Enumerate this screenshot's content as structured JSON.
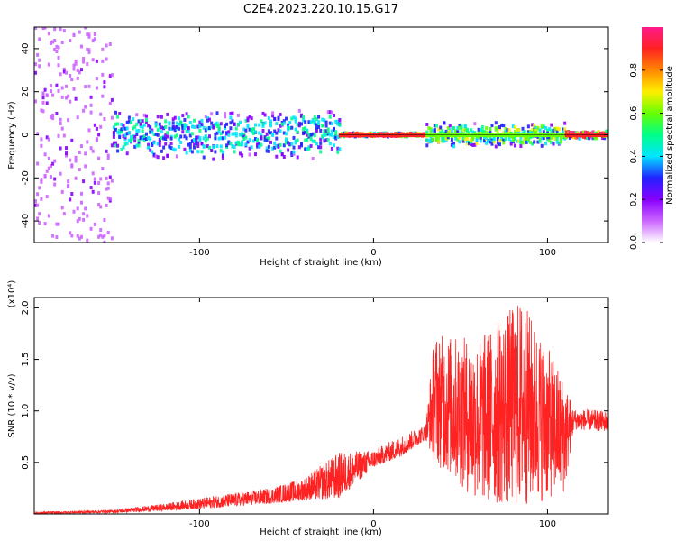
{
  "figure_title": "C2E4.2023.220.10.15.G17",
  "chart_data": [
    {
      "type": "heatmap",
      "xlabel": "Height of straight line (km)",
      "ylabel": "Frequency (Hz)",
      "xlim": [
        -195,
        135
      ],
      "ylim": [
        -50,
        50
      ],
      "xticks": [
        -100,
        0,
        100
      ],
      "yticks": [
        -40,
        -20,
        0,
        20,
        40
      ],
      "colorbar": {
        "label": "Normalized spectral amplitude",
        "range": [
          0.0,
          1.0
        ],
        "ticks": [
          0.0,
          0.2,
          0.4,
          0.6,
          0.8
        ],
        "colors": [
          "#ffffff",
          "#cc66ff",
          "#8800ff",
          "#2222ff",
          "#00e5ff",
          "#00ff88",
          "#66ff00",
          "#ffee00",
          "#ff8800",
          "#ff2222",
          "#ff1a8c"
        ]
      },
      "regions": [
        {
          "x": [
            -195,
            -150
          ],
          "freq_spread": 50,
          "amplitude": 0.15,
          "description_level": "scattered noise"
        },
        {
          "x": [
            -150,
            -20
          ],
          "freq_spread": 12,
          "amplitude": 0.4
        },
        {
          "x": [
            -20,
            30
          ],
          "freq_spread": 1,
          "amplitude": 0.9
        },
        {
          "x": [
            30,
            110
          ],
          "freq_spread": 6,
          "amplitude": 0.55
        },
        {
          "x": [
            110,
            135
          ],
          "freq_spread": 2,
          "amplitude": 0.9
        }
      ]
    },
    {
      "type": "line",
      "xlabel": "Height of straight line (km)",
      "ylabel": "SNR (10 * v/v)",
      "y_multiplier": "(x10⁴)",
      "xlim": [
        -195,
        135
      ],
      "ylim": [
        0,
        2.1
      ],
      "xticks": [
        -100,
        0,
        100
      ],
      "yticks": [
        0.5,
        1.0,
        1.5,
        2.0
      ],
      "color": "#ff2222",
      "envelope": [
        {
          "x": -195,
          "min": 0.0,
          "max": 0.02
        },
        {
          "x": -150,
          "min": 0.01,
          "max": 0.04
        },
        {
          "x": -120,
          "min": 0.03,
          "max": 0.1
        },
        {
          "x": -90,
          "min": 0.06,
          "max": 0.18
        },
        {
          "x": -60,
          "min": 0.1,
          "max": 0.25
        },
        {
          "x": -40,
          "min": 0.13,
          "max": 0.35
        },
        {
          "x": -20,
          "min": 0.15,
          "max": 0.6
        },
        {
          "x": 0,
          "min": 0.45,
          "max": 0.62
        },
        {
          "x": 15,
          "min": 0.55,
          "max": 0.75
        },
        {
          "x": 30,
          "min": 0.72,
          "max": 0.87
        },
        {
          "x": 35,
          "min": 0.5,
          "max": 1.75
        },
        {
          "x": 60,
          "min": 0.1,
          "max": 1.7
        },
        {
          "x": 85,
          "min": 0.05,
          "max": 2.1
        },
        {
          "x": 110,
          "min": 0.2,
          "max": 1.3
        },
        {
          "x": 115,
          "min": 0.82,
          "max": 1.02
        },
        {
          "x": 135,
          "min": 0.8,
          "max": 1.0
        }
      ]
    }
  ]
}
